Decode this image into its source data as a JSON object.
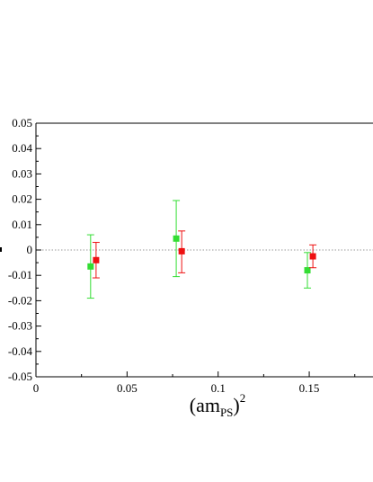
{
  "chart_data": {
    "type": "scatter",
    "xlabel": {
      "main": "(am",
      "subscript": "PS",
      "close": ")",
      "superscript": "2"
    },
    "xlim": [
      0,
      0.185
    ],
    "ylim": [
      -0.05,
      0.05
    ],
    "x_ticks": [
      0,
      0.05,
      0.1,
      0.15
    ],
    "x_tick_labels": [
      "0",
      "0.05",
      "0.1",
      "0.15"
    ],
    "y_ticks": [
      0.05,
      0.04,
      0.03,
      0.02,
      0.01,
      0,
      -0.01,
      -0.02,
      -0.03,
      -0.04,
      -0.05
    ],
    "y_tick_labels": [
      "0.05",
      "0.04",
      "0.03",
      "0.02",
      "0.01",
      "0",
      "-0.01",
      "-0.02",
      "-0.03",
      "-0.04",
      "-0.05"
    ],
    "reference_line": {
      "y": 0,
      "style": "dotted",
      "color": "#999999"
    },
    "grid": false,
    "series": [
      {
        "color": "#33dd33",
        "points": [
          {
            "x": 0.03,
            "y": -0.0065,
            "ylow": -0.019,
            "yhigh": 0.006
          },
          {
            "x": 0.077,
            "y": 0.0045,
            "ylow": -0.0105,
            "yhigh": 0.0195
          },
          {
            "x": 0.149,
            "y": -0.008,
            "ylow": -0.015,
            "yhigh": -0.001
          }
        ]
      },
      {
        "color": "#ee1111",
        "points": [
          {
            "x": 0.033,
            "y": -0.004,
            "ylow": -0.011,
            "yhigh": 0.003
          },
          {
            "x": 0.08,
            "y": -0.0005,
            "ylow": -0.009,
            "yhigh": 0.0075
          },
          {
            "x": 0.152,
            "y": -0.0025,
            "ylow": -0.007,
            "yhigh": 0.002
          }
        ]
      }
    ]
  }
}
